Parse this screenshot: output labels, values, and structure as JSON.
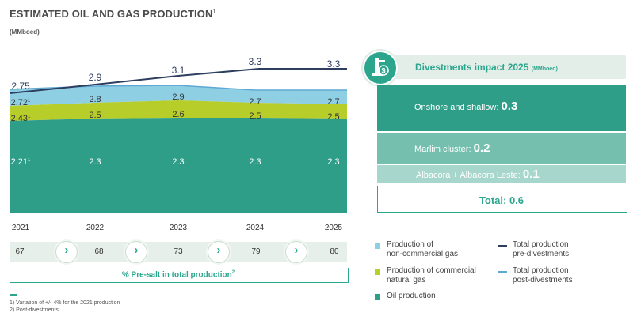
{
  "header": {
    "title": "ESTIMATED OIL AND GAS PRODUCTION",
    "title_note": "1",
    "unit": "(MMboed)"
  },
  "chart_data": {
    "type": "area",
    "categories": [
      "2021",
      "2022",
      "2023",
      "2024",
      "2025"
    ],
    "series": [
      {
        "name": "Oil production",
        "values": [
          2.21,
          2.3,
          2.3,
          2.3,
          2.3
        ],
        "labels": [
          "2.21",
          "2.3",
          "2.3",
          "2.3",
          "2.3"
        ],
        "color": "#2e9e88"
      },
      {
        "name": "Production of commercial natural gas",
        "values": [
          2.43,
          2.5,
          2.6,
          2.5,
          2.5
        ],
        "labels": [
          "2.43",
          "2.5",
          "2.6",
          "2.5",
          "2.5"
        ],
        "color": "#b7cd2a"
      },
      {
        "name": "Production of non-commercial gas",
        "values": [
          2.72,
          2.8,
          2.9,
          2.7,
          2.7
        ],
        "labels": [
          "2.72",
          "2.8",
          "2.9",
          "2.7",
          "2.7"
        ],
        "color": "#8ecfe3"
      },
      {
        "name": "Total production pre-divestments",
        "values": [
          2.75,
          2.9,
          3.1,
          3.3,
          3.3
        ],
        "labels": [
          "2.75",
          "2.9",
          "3.1",
          "3.3",
          "3.3"
        ],
        "color": "#2d3e5f"
      },
      {
        "name": "Total production post-divestments",
        "values": [
          2.72,
          2.8,
          2.9,
          2.7,
          2.7
        ],
        "color": "#5fa8d3"
      }
    ],
    "first_label_note": "1"
  },
  "presalt": {
    "values": [
      "67",
      "68",
      "73",
      "79",
      "80"
    ],
    "label": "% Pre-salt in total production",
    "label_note": "2"
  },
  "notes": [
    "1) Variation of +/-  4% for the 2021 production",
    "2) Post-divestments"
  ],
  "divestments": {
    "title": "Divestments impact 2025",
    "unit": "(MMboed)",
    "items": [
      {
        "label": "Onshore and shallow:",
        "value": "0.3"
      },
      {
        "label": "Marlim cluster:",
        "value": "0.2"
      },
      {
        "label": "Albacora + Albacora Leste:",
        "value": "0.1"
      }
    ],
    "total": "Total: 0.6"
  },
  "legend": {
    "non_commercial_1": "Production of",
    "non_commercial_2": "non-commercial gas",
    "commercial_1": "Production of commercial",
    "commercial_2": "natural gas",
    "oil": "Oil production",
    "pre_1": "Total production",
    "pre_2": "pre-divestments",
    "post_1": "Total production",
    "post_2": "post-divestments"
  },
  "colors": {
    "accent": "#2ca58d",
    "oil": "#2e9e88",
    "commercial": "#b7cd2a",
    "noncommercial": "#8ecfe3",
    "pre": "#2d3e5f",
    "post": "#5fa8d3"
  },
  "icons": {
    "arrow": "chevron-right-icon",
    "divestment": "oil-pump-dollar-icon"
  }
}
